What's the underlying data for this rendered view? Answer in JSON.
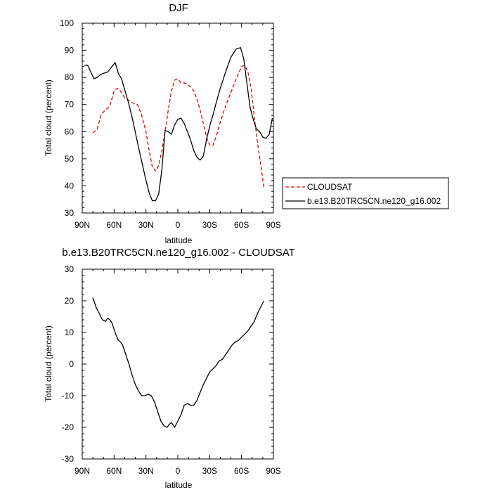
{
  "chart_data": [
    {
      "type": "line",
      "title": "DJF",
      "xlabel": "latitude",
      "ylabel": "Total cloud (percent)",
      "xlim": [
        90,
        -90
      ],
      "ylim": [
        30,
        100
      ],
      "x_ticks": [
        {
          "value": 90,
          "label": "90N"
        },
        {
          "value": 60,
          "label": "60N"
        },
        {
          "value": 30,
          "label": "30N"
        },
        {
          "value": 0,
          "label": "0"
        },
        {
          "value": -30,
          "label": "30S"
        },
        {
          "value": -60,
          "label": "60S"
        },
        {
          "value": -90,
          "label": "90S"
        }
      ],
      "y_ticks": [
        30,
        40,
        50,
        60,
        70,
        80,
        90,
        100
      ],
      "legend_position": "outside-right",
      "series": [
        {
          "name": "CLOUDSAT",
          "color": "#e00000",
          "dash": "dashed",
          "x": [
            80,
            76,
            72,
            68,
            64,
            60,
            57,
            54,
            50,
            46,
            42,
            38,
            34,
            30,
            27,
            24,
            21,
            18,
            15,
            12,
            9,
            6,
            3,
            0,
            -3,
            -6,
            -9,
            -12,
            -15,
            -18,
            -21,
            -24,
            -27,
            -30,
            -33,
            -36,
            -40,
            -45,
            -50,
            -55,
            -60,
            -63,
            -66,
            -69,
            -72,
            -75,
            -78,
            -81
          ],
          "y": [
            59.5,
            61,
            66.5,
            68,
            69.5,
            75,
            76,
            75,
            72.5,
            71.5,
            70.5,
            70,
            66,
            60,
            53,
            47,
            45.5,
            47.5,
            53,
            60,
            68,
            75,
            79,
            79.5,
            78,
            78,
            77.5,
            76.5,
            75,
            72,
            68,
            63,
            58,
            55,
            55,
            58,
            63.5,
            69.5,
            74.5,
            79.5,
            84,
            84.5,
            82,
            76,
            65.5,
            56,
            48,
            39.5
          ]
        },
        {
          "name": "b.e13.B20TRC5CN.ne120_g16.002",
          "color": "#000000",
          "dash": "solid",
          "x": [
            88,
            85,
            82,
            79,
            76,
            73,
            70,
            66,
            62,
            59,
            56,
            53,
            50,
            46,
            42,
            38,
            34,
            30,
            27,
            24,
            21,
            18,
            15,
            12,
            9,
            6,
            3,
            0,
            -3,
            -6,
            -9,
            -12,
            -15,
            -18,
            -21,
            -24,
            -27,
            -30,
            -33,
            -36,
            -40,
            -45,
            -50,
            -55,
            -59,
            -62,
            -65,
            -68,
            -71,
            -74,
            -77,
            -80,
            -83,
            -86,
            -89
          ],
          "y": [
            84.5,
            84.5,
            82,
            79.5,
            80,
            81,
            81.5,
            82,
            84,
            85.5,
            81.5,
            79.5,
            75.5,
            70,
            63.5,
            56,
            49,
            42,
            37.5,
            34.5,
            34.5,
            37,
            46,
            60.5,
            60,
            59,
            62.5,
            64.5,
            65,
            63,
            60,
            57,
            53,
            50.5,
            49.5,
            51,
            57,
            62,
            66,
            70.5,
            76,
            82,
            87.5,
            90.5,
            91,
            87,
            78,
            69,
            64.5,
            61,
            60,
            58,
            57.5,
            59,
            65
          ]
        }
      ]
    },
    {
      "type": "line",
      "title": "b.e13.B20TRC5CN.ne120_g16.002 - CLOUDSAT",
      "xlabel": "latitude",
      "ylabel": "Total cloud (percent)",
      "xlim": [
        90,
        -90
      ],
      "ylim": [
        -30,
        30
      ],
      "x_ticks": [
        {
          "value": 90,
          "label": "90N"
        },
        {
          "value": 60,
          "label": "60N"
        },
        {
          "value": 30,
          "label": "30N"
        },
        {
          "value": 0,
          "label": "0"
        },
        {
          "value": -30,
          "label": "30S"
        },
        {
          "value": -60,
          "label": "60S"
        },
        {
          "value": -90,
          "label": "90S"
        }
      ],
      "y_ticks": [
        -30,
        -20,
        -10,
        0,
        10,
        20,
        30
      ],
      "series": [
        {
          "color": "#000000",
          "dash": "solid",
          "x": [
            80,
            77,
            74,
            71,
            68,
            66,
            64,
            62,
            60,
            58,
            56,
            54,
            52,
            49,
            46,
            43,
            40,
            37,
            34,
            31,
            28,
            25,
            22,
            19,
            16,
            13,
            10,
            8,
            6,
            3,
            0,
            -3,
            -6,
            -9,
            -12,
            -15,
            -18,
            -21,
            -24,
            -27,
            -30,
            -33,
            -36,
            -39,
            -42,
            -45,
            -48,
            -51,
            -54,
            -57,
            -60,
            -63,
            -66,
            -69,
            -72,
            -75,
            -78,
            -81
          ],
          "y": [
            21,
            18,
            16,
            14,
            13.5,
            14.5,
            14,
            13,
            11,
            9,
            7.5,
            7,
            6,
            3,
            0,
            -3.5,
            -6.5,
            -8.5,
            -10,
            -10,
            -9.5,
            -10,
            -12,
            -15,
            -18,
            -19.5,
            -20,
            -19,
            -18.5,
            -20,
            -18,
            -16,
            -13,
            -12.5,
            -13,
            -13,
            -11.5,
            -9,
            -6.5,
            -4.5,
            -2.5,
            -1.5,
            -0.5,
            1,
            1.5,
            3,
            4.5,
            6,
            7,
            7.5,
            8.5,
            9.5,
            10.5,
            12,
            13.5,
            16,
            18,
            20
          ]
        }
      ]
    }
  ]
}
